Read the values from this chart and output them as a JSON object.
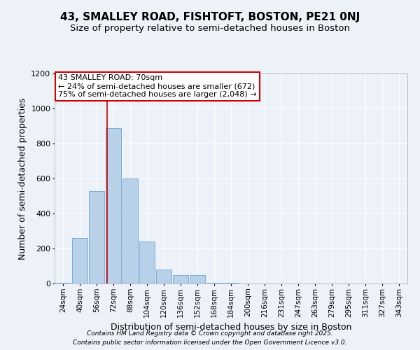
{
  "title": "43, SMALLEY ROAD, FISHTOFT, BOSTON, PE21 0NJ",
  "subtitle": "Size of property relative to semi-detached houses in Boston",
  "xlabel": "Distribution of semi-detached houses by size in Boston",
  "ylabel": "Number of semi-detached properties",
  "categories": [
    "24sqm",
    "40sqm",
    "56sqm",
    "72sqm",
    "88sqm",
    "104sqm",
    "120sqm",
    "136sqm",
    "152sqm",
    "168sqm",
    "184sqm",
    "200sqm",
    "216sqm",
    "231sqm",
    "247sqm",
    "263sqm",
    "279sqm",
    "295sqm",
    "311sqm",
    "327sqm",
    "343sqm"
  ],
  "values": [
    3,
    260,
    530,
    890,
    600,
    240,
    80,
    50,
    50,
    5,
    5,
    0,
    0,
    0,
    0,
    0,
    0,
    0,
    0,
    0,
    0
  ],
  "bar_color": "#b8d0e8",
  "bar_edge_color": "#7aafd4",
  "background_color": "#edf2f9",
  "grid_color": "#ffffff",
  "annotation_text": "43 SMALLEY ROAD: 70sqm\n← 24% of semi-detached houses are smaller (672)\n75% of semi-detached houses are larger (2,048) →",
  "annotation_box_color": "#cc0000",
  "vline_x": 2.62,
  "vline_color": "#cc0000",
  "ylim": [
    0,
    1200
  ],
  "yticks": [
    0,
    200,
    400,
    600,
    800,
    1000,
    1200
  ],
  "footer_line1": "Contains HM Land Registry data © Crown copyright and database right 2025.",
  "footer_line2": "Contains public sector information licensed under the Open Government Licence v3.0.",
  "title_fontsize": 11,
  "subtitle_fontsize": 9.5,
  "axis_label_fontsize": 9,
  "tick_fontsize": 7.5,
  "annotation_fontsize": 8,
  "footer_fontsize": 6.5
}
